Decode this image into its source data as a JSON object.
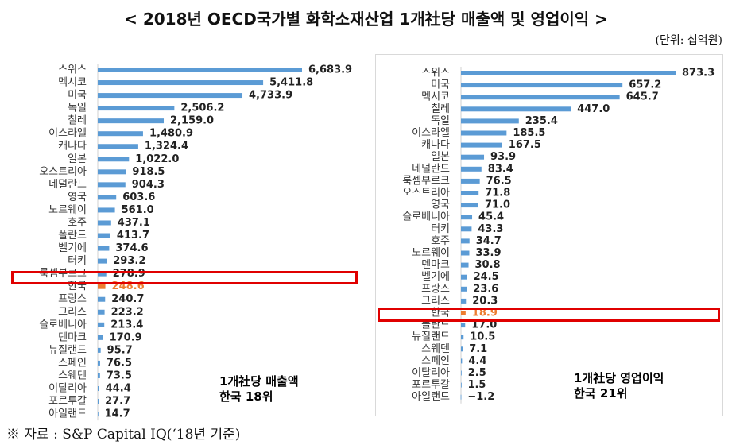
{
  "title": "< 2018년 OECD국가별 화학소재산업 1개社당 매출액 및 영업이익 >",
  "unit": "(단위: 십억원)",
  "source": "※ 자료 : S&P Capital IQ(‘18년 기준)",
  "colors": {
    "bar": "#5b9bd5",
    "highlight": "#ed7d31",
    "box": "#e00000"
  },
  "chart_data": [
    {
      "type": "bar",
      "orientation": "horizontal",
      "title": "1개社당 매출액",
      "note_line1": "1개社당 매출액",
      "note_line2": "한국 18위",
      "highlight": "한국",
      "categories": [
        "스위스",
        "멕시코",
        "미국",
        "독일",
        "칠레",
        "이스라엘",
        "캐나다",
        "일본",
        "오스트리아",
        "네덜란드",
        "영국",
        "노르웨이",
        "호주",
        "폴란드",
        "벨기에",
        "터키",
        "룩셈부르크",
        "한국",
        "프랑스",
        "그리스",
        "슬로베니아",
        "덴마크",
        "뉴질랜드",
        "스페인",
        "스웨덴",
        "이탈리아",
        "포르투갈",
        "아일랜드"
      ],
      "values": [
        6683.9,
        5411.8,
        4733.9,
        2506.2,
        2159.0,
        1480.9,
        1324.4,
        1022.0,
        918.5,
        904.3,
        603.6,
        561.0,
        437.1,
        413.7,
        374.6,
        293.2,
        278.9,
        248.6,
        240.7,
        223.2,
        213.4,
        170.9,
        95.7,
        76.5,
        73.5,
        44.4,
        27.7,
        14.7
      ],
      "labels": [
        "6,683.9",
        "5,411.8",
        "4,733.9",
        "2,506.2",
        "2,159.0",
        "1,480.9",
        "1,324.4",
        "1,022.0",
        "918.5",
        "904.3",
        "603.6",
        "561.0",
        "437.1",
        "413.7",
        "374.6",
        "293.2",
        "278.9",
        "248.6",
        "240.7",
        "223.2",
        "213.4",
        "170.9",
        "95.7",
        "76.5",
        "73.5",
        "44.4",
        "27.7",
        "14.7"
      ]
    },
    {
      "type": "bar",
      "orientation": "horizontal",
      "title": "1개社당 영업이익",
      "note_line1": "1개社당 영업이익",
      "note_line2": "한국 21위",
      "highlight": "한국",
      "categories": [
        "스위스",
        "미국",
        "멕시코",
        "칠레",
        "독일",
        "이스라엘",
        "캐나다",
        "일본",
        "네덜란드",
        "룩셈부르크",
        "오스트리아",
        "영국",
        "슬로베니아",
        "터키",
        "호주",
        "노르웨이",
        "덴마크",
        "벨기에",
        "프랑스",
        "그리스",
        "한국",
        "폴란드",
        "뉴질랜드",
        "스웨덴",
        "스페인",
        "이탈리아",
        "포르투갈",
        "아일랜드"
      ],
      "values": [
        873.3,
        657.2,
        645.7,
        447.0,
        235.4,
        185.5,
        167.5,
        93.9,
        83.4,
        76.5,
        71.8,
        71.0,
        45.4,
        43.3,
        34.7,
        33.9,
        30.8,
        24.5,
        23.6,
        20.3,
        18.9,
        17.0,
        10.5,
        7.1,
        4.4,
        2.5,
        1.5,
        -1.2
      ],
      "labels": [
        "873.3",
        "657.2",
        "645.7",
        "447.0",
        "235.4",
        "185.5",
        "167.5",
        "93.9",
        "83.4",
        "76.5",
        "71.8",
        "71.0",
        "45.4",
        "43.3",
        "34.7",
        "33.9",
        "30.8",
        "24.5",
        "23.6",
        "20.3",
        "18.9",
        "17.0",
        "10.5",
        "7.1",
        "4.4",
        "2.5",
        "1.5",
        "−1.2"
      ]
    }
  ]
}
